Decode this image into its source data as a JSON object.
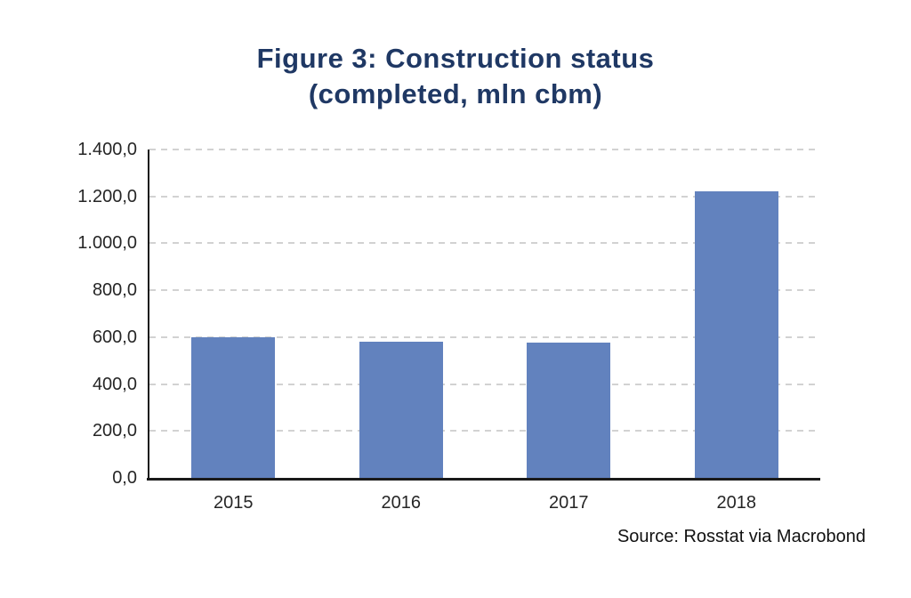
{
  "title": {
    "line1": "Figure 3: Construction status",
    "line2": "(completed, mln cbm)"
  },
  "source": "Source: Rosstat via Macrobond",
  "colors": {
    "bar": "#6282BE",
    "title": "#1F3864",
    "gridline": "#D2D2D2",
    "axis": "#1a1a1a",
    "tick_label": "#262626"
  },
  "chart_data": {
    "type": "bar",
    "title": "Figure 3: Construction status (completed, mln cbm)",
    "categories": [
      "2015",
      "2016",
      "2017",
      "2018"
    ],
    "values": [
      600,
      580,
      575,
      1220
    ],
    "xlabel": "",
    "ylabel": "",
    "ylim": [
      0,
      1400
    ],
    "ytick_values": [
      0,
      200,
      400,
      600,
      800,
      1000,
      1200,
      1400
    ],
    "ytick_labels": [
      "0,0",
      "200,0",
      "400,0",
      "600,0",
      "800,0",
      "1.000,0",
      "1.200,0",
      "1.400,0"
    ],
    "grid": "horizontal-dashed",
    "legend": false,
    "bar_color": "#6282BE"
  }
}
